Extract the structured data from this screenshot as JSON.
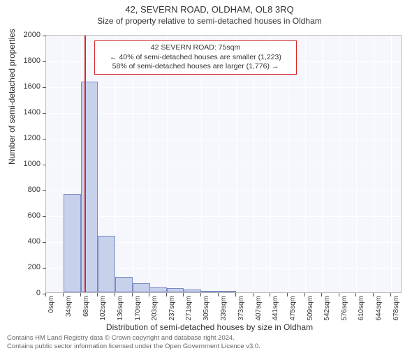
{
  "title": "42, SEVERN ROAD, OLDHAM, OL8 3RQ",
  "subtitle": "Size of property relative to semi-detached houses in Oldham",
  "ylabel": "Number of semi-detached properties",
  "xlabel": "Distribution of semi-detached houses by size in Oldham",
  "chart": {
    "type": "histogram",
    "background_color": "#f5f7fc",
    "grid_color": "#ffffff",
    "bar_fill": "#c8d1ec",
    "bar_border": "#7a8bc2",
    "marker_color": "#d62728",
    "ylim": [
      0,
      2000
    ],
    "ytick_step": 200,
    "yticks": [
      0,
      200,
      400,
      600,
      800,
      1000,
      1200,
      1400,
      1600,
      1800,
      2000
    ],
    "xlim": [
      0,
      700
    ],
    "xticks": [
      0,
      34,
      68,
      102,
      136,
      170,
      203,
      237,
      271,
      305,
      339,
      373,
      407,
      441,
      475,
      509,
      542,
      576,
      610,
      644,
      678
    ],
    "xtick_unit": "sqm",
    "bin_width": 34,
    "bins_left": [
      0,
      34,
      68,
      102,
      136,
      170,
      203,
      237,
      271,
      305,
      339
    ],
    "values": [
      0,
      760,
      1630,
      440,
      120,
      70,
      40,
      30,
      20,
      12,
      10
    ],
    "marker_x": 75,
    "label_fontsize": 12,
    "tick_fontsize": 10
  },
  "annotation": {
    "line1": "42 SEVERN ROAD: 75sqm",
    "line2": "← 40% of semi-detached houses are smaller (1,223)",
    "line3": "58% of semi-detached houses are larger (1,776) →",
    "border_color": "#d62728"
  },
  "footer": {
    "line1": "Contains HM Land Registry data © Crown copyright and database right 2024.",
    "line2": "Contains public sector information licensed under the Open Government Licence v3.0."
  }
}
